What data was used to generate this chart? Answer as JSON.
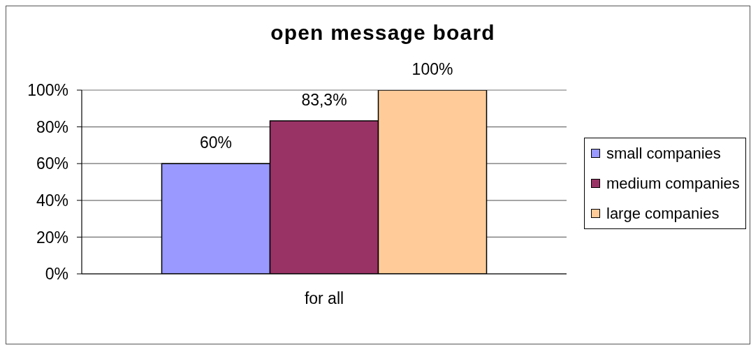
{
  "chart_data": {
    "type": "bar",
    "title": "open message board",
    "categories": [
      "for all"
    ],
    "series": [
      {
        "name": "small companies",
        "color": "#9999ff",
        "values": [
          60
        ],
        "value_labels": [
          "60%"
        ]
      },
      {
        "name": "medium companies",
        "color": "#993366",
        "values": [
          83.3
        ],
        "value_labels": [
          "83,3%"
        ]
      },
      {
        "name": "large companies",
        "color": "#ffcc99",
        "values": [
          100
        ],
        "value_labels": [
          "100%"
        ]
      }
    ],
    "ylim": [
      0,
      100
    ],
    "yticks": [
      {
        "value": 0,
        "label": "0%"
      },
      {
        "value": 20,
        "label": "20%"
      },
      {
        "value": 40,
        "label": "40%"
      },
      {
        "value": 60,
        "label": "60%"
      },
      {
        "value": 80,
        "label": "80%"
      },
      {
        "value": 100,
        "label": "100%"
      }
    ],
    "grid": "y",
    "legend": "right"
  }
}
